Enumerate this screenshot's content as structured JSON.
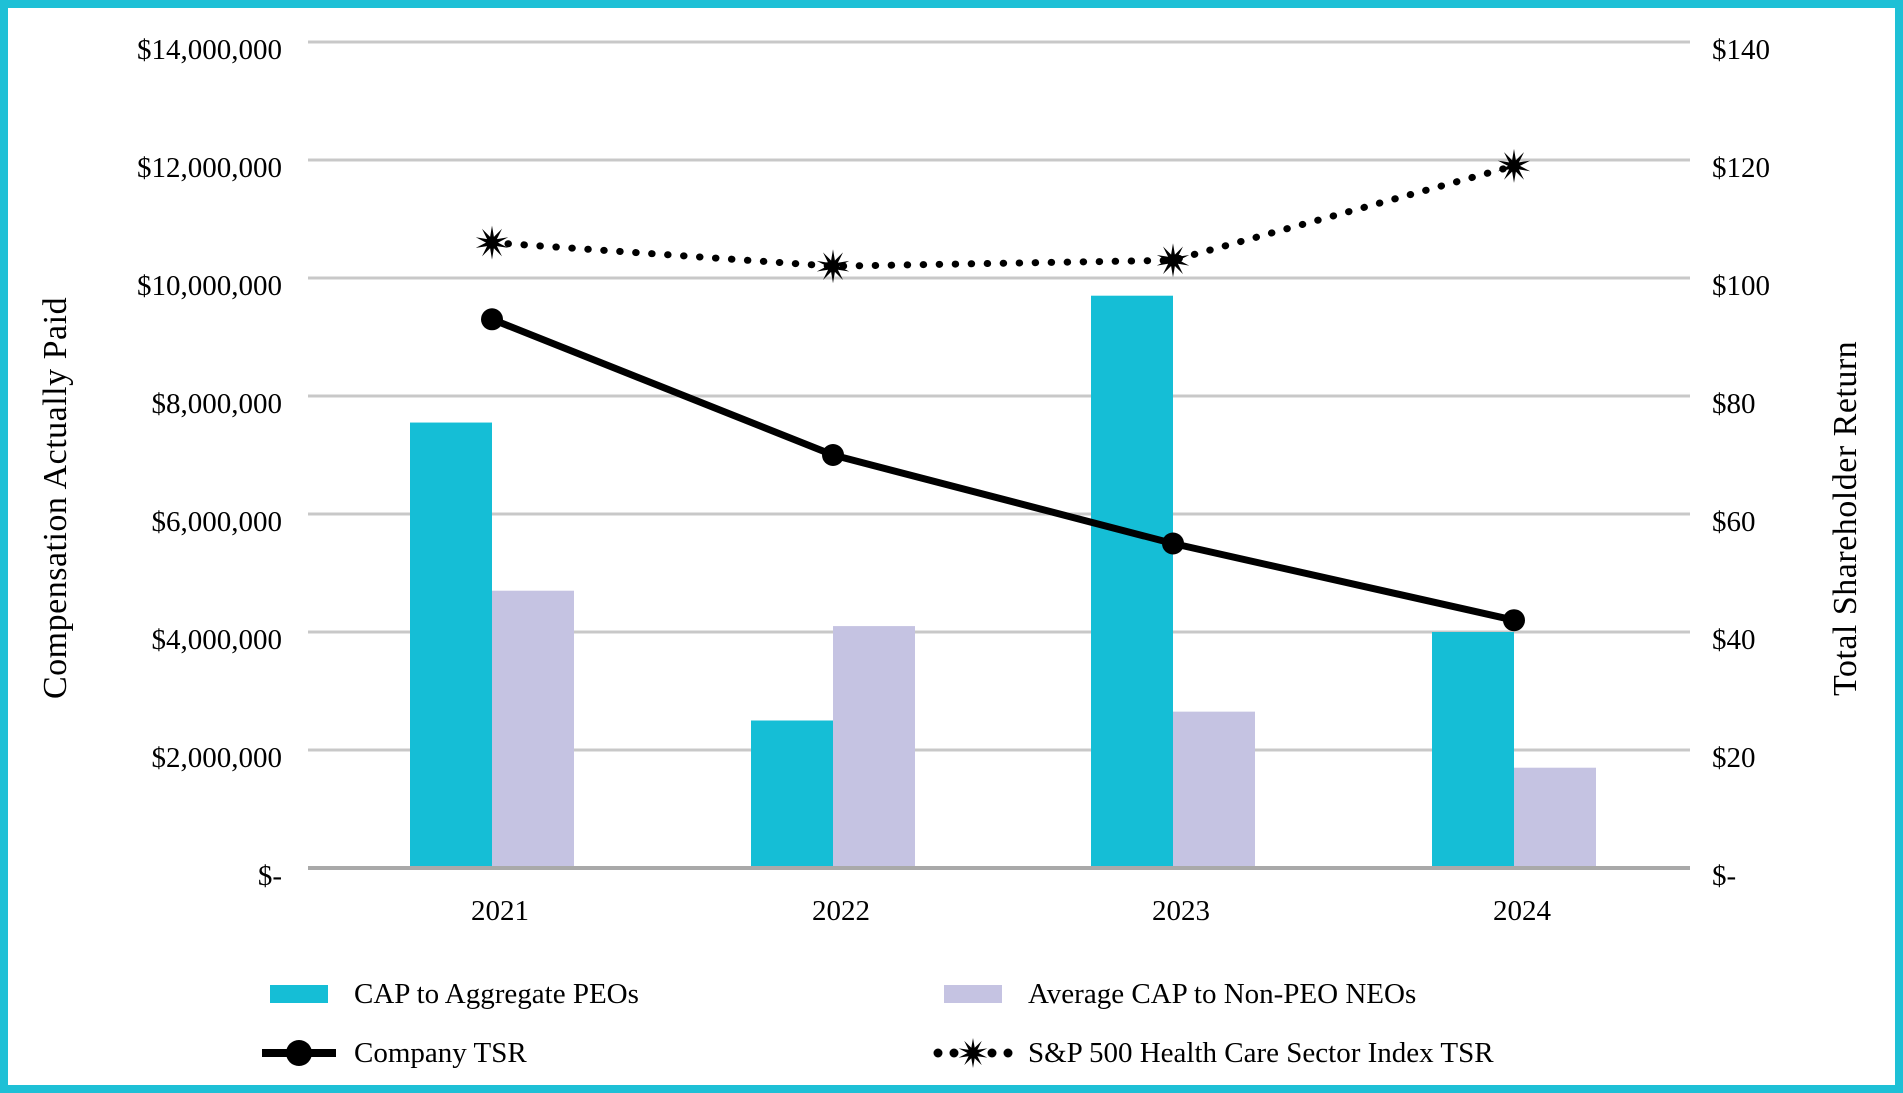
{
  "chart_data": {
    "type": "combo-bar-line",
    "categories": [
      "2021",
      "2022",
      "2023",
      "2024"
    ],
    "series": [
      {
        "name": "CAP to Aggregate PEOs",
        "type": "bar",
        "axis": "left",
        "color": "#15bed6",
        "values": [
          7550000,
          2500000,
          9700000,
          4000000
        ]
      },
      {
        "name": "Average CAP to Non-PEO NEOs",
        "type": "bar",
        "axis": "left",
        "color": "#c5c3e2",
        "values": [
          4700000,
          4100000,
          2650000,
          1700000
        ]
      },
      {
        "name": "Company TSR",
        "type": "line",
        "axis": "right",
        "color": "#000000",
        "line_style": "solid",
        "marker": "circle",
        "values": [
          93,
          70,
          55,
          42
        ]
      },
      {
        "name": "S&P 500 Health Care Sector Index TSR",
        "type": "line",
        "axis": "right",
        "color": "#000000",
        "line_style": "dotted",
        "marker": "star",
        "values": [
          106,
          102,
          103,
          119
        ]
      }
    ],
    "left_axis": {
      "title": "Compensation Actually Paid",
      "min": 0,
      "max": 14000000,
      "ticks": [
        "$14,000,000",
        "$12,000,000",
        "$10,000,000",
        "$8,000,000",
        "$6,000,000",
        "$4,000,000",
        "$2,000,000",
        "$-"
      ]
    },
    "right_axis": {
      "title": "Total Shareholder Return",
      "min": 0,
      "max": 140,
      "ticks": [
        "$140",
        "$120",
        "$100",
        "$80",
        "$60",
        "$40",
        "$20",
        "$-"
      ]
    },
    "grid": "horizontal",
    "legend_position": "bottom"
  },
  "colors": {
    "frame": "#1ec0d6",
    "gridline": "#c8c8c8",
    "axis_line": "#a9a9a9",
    "text": "#000000",
    "background": "#ffffff"
  }
}
